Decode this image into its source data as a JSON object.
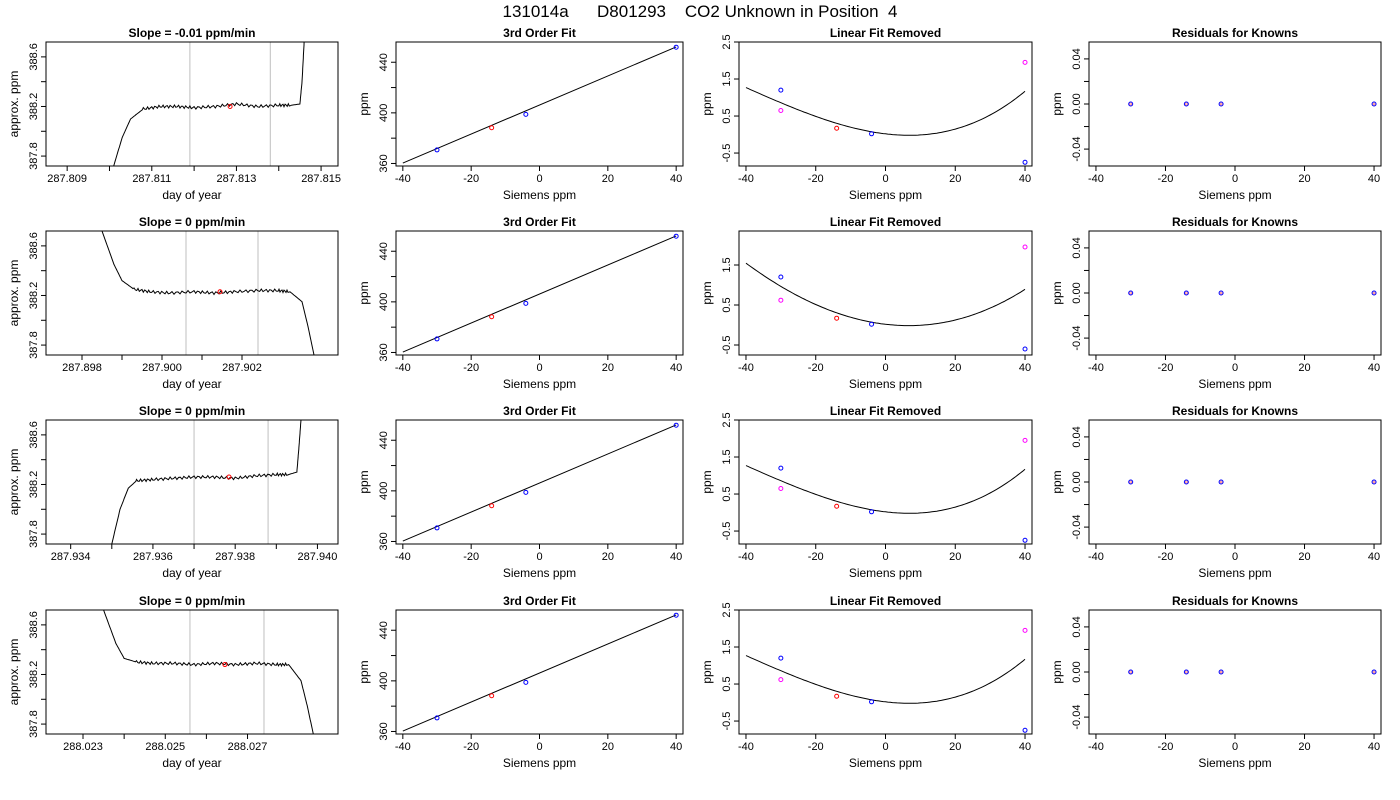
{
  "title": "131014a      D801293    CO2 Unknown in Position  4",
  "colors": {
    "axis": "#000000",
    "grid_vline": "#bfbfbf",
    "known": "#0000ff",
    "unknown": "#ff0000",
    "linear_resid": "#ff00ff",
    "line": "#000000"
  },
  "chart_data": [
    {
      "panel": "trace",
      "type": "line",
      "title": "Slope =  -0.01  ppm/min",
      "xlabel": "day of year",
      "ylabel": "approx. ppm",
      "xticks": [
        "287.809",
        "287.811",
        "287.813",
        "287.815"
      ],
      "yticks": [
        "387.8",
        "388.2",
        "388.6"
      ],
      "xlim": [
        287.8085,
        287.8154
      ],
      "ylim": [
        387.72,
        388.72
      ],
      "vlines": [
        287.8119,
        287.8138
      ],
      "x": [
        287.8101,
        287.8103,
        287.8105,
        287.8108,
        287.8112,
        287.8116,
        287.812,
        287.8125,
        287.813,
        287.8135,
        287.814,
        287.8143,
        287.8145,
        287.81455,
        287.8146
      ],
      "y": [
        387.72,
        387.95,
        388.1,
        388.18,
        388.2,
        388.2,
        388.19,
        388.2,
        388.22,
        388.2,
        388.21,
        388.21,
        388.22,
        388.4,
        388.72
      ],
      "marker": {
        "x": 287.81285,
        "y": 388.2
      }
    },
    {
      "panel": "fit",
      "type": "scatter",
      "title": "3rd Order Fit",
      "xlabel": "Siemens ppm",
      "ylabel": "ppm",
      "xticks": [
        "-40",
        "-20",
        "0",
        "20",
        "40"
      ],
      "yticks": [
        "360",
        "400",
        "440"
      ],
      "xlim": [
        -42,
        42
      ],
      "ylim": [
        358,
        456
      ],
      "knowns": {
        "x": [
          -30,
          -4,
          40
        ],
        "y": [
          370.7,
          398.8,
          451.9
        ]
      },
      "unknown": {
        "x": [
          -14
        ],
        "y": [
          388.2
        ]
      },
      "line": {
        "x": [
          -40,
          40
        ],
        "y": [
          360.3,
          452.1
        ]
      }
    },
    {
      "panel": "linear_removed",
      "type": "scatter",
      "title": "Linear Fit Removed",
      "xlabel": "Siemens ppm",
      "ylabel": "ppm",
      "xticks": [
        "-40",
        "-20",
        "0",
        "20",
        "40"
      ],
      "yticks": [
        "-0.5",
        "0.5",
        "1.5",
        "2.5"
      ],
      "xlim": [
        -42,
        42
      ],
      "ylim": [
        -0.85,
        2.5
      ],
      "knowns": {
        "x": [
          -30,
          -4,
          40
        ],
        "y": [
          1.2,
          0.02,
          -0.75
        ]
      },
      "unknown": {
        "x": [
          -14
        ],
        "y": [
          0.17
        ]
      },
      "linear": {
        "x": [
          -30,
          40
        ],
        "y": [
          0.65,
          1.95
        ]
      },
      "curve_coeffs": [
        0.0187,
        -0.011065,
        0.00075,
        6.15e-06
      ]
    },
    {
      "panel": "residuals",
      "type": "scatter",
      "title": "Residuals for Knowns",
      "xlabel": "Siemens ppm",
      "ylabel": "ppm",
      "xticks": [
        "-40",
        "-20",
        "0",
        "20",
        "40"
      ],
      "yticks": [
        "-0.04",
        "0.00",
        "0.04"
      ],
      "xlim": [
        -42,
        42
      ],
      "ylim": [
        -0.055,
        0.055
      ],
      "knowns": {
        "x": [
          -30,
          -14,
          -4,
          40
        ],
        "y": [
          0,
          0,
          0,
          0
        ]
      }
    },
    {
      "panel": "trace",
      "type": "line",
      "title": "Slope =  0  ppm/min",
      "xlabel": "day of year",
      "ylabel": "approx. ppm",
      "xticks": [
        "287.898",
        "287.900",
        "287.902"
      ],
      "yticks": [
        "387.8",
        "388.2",
        "388.6"
      ],
      "xlim": [
        287.8971,
        287.9044
      ],
      "ylim": [
        387.72,
        388.72
      ],
      "vlines": [
        287.9006,
        287.9024
      ],
      "x": [
        287.8985,
        287.8988,
        287.899,
        287.8993,
        287.8997,
        287.9002,
        287.9008,
        287.9013,
        287.9018,
        287.9024,
        287.9029,
        287.9032,
        287.9035,
        287.90365,
        287.9038
      ],
      "y": [
        388.72,
        388.45,
        388.32,
        388.25,
        388.23,
        388.22,
        388.23,
        388.22,
        388.23,
        388.24,
        388.24,
        388.23,
        388.15,
        387.95,
        387.72
      ],
      "marker": {
        "x": 287.90145,
        "y": 388.23
      }
    },
    {
      "panel": "fit",
      "type": "scatter",
      "title": "3rd Order Fit",
      "xlabel": "Siemens ppm",
      "ylabel": "ppm",
      "xticks": [
        "-40",
        "-20",
        "0",
        "20",
        "40"
      ],
      "yticks": [
        "360",
        "400",
        "440"
      ],
      "xlim": [
        -42,
        42
      ],
      "ylim": [
        358,
        456
      ],
      "knowns": {
        "x": [
          -30,
          -4,
          40
        ],
        "y": [
          370.7,
          398.8,
          451.9
        ]
      },
      "unknown": {
        "x": [
          -14
        ],
        "y": [
          388.2
        ]
      },
      "line": {
        "x": [
          -40,
          40
        ],
        "y": [
          360.3,
          452.1
        ]
      }
    },
    {
      "panel": "linear_removed",
      "type": "scatter",
      "title": "Linear Fit Removed",
      "xlabel": "Siemens ppm",
      "ylabel": "ppm",
      "xticks": [
        "-40",
        "-20",
        "0",
        "20",
        "40"
      ],
      "yticks": [
        "-0.5",
        "0.5",
        "1.5"
      ],
      "xlim": [
        -42,
        42
      ],
      "ylim": [
        -0.75,
        2.35
      ],
      "knowns": {
        "x": [
          -30,
          -4,
          40
        ],
        "y": [
          1.2,
          0.02,
          -0.6
        ]
      },
      "unknown": {
        "x": [
          -14
        ],
        "y": [
          0.17
        ]
      },
      "linear": {
        "x": [
          -30,
          40
        ],
        "y": [
          0.62,
          1.95
        ]
      },
      "curve_coeffs": [
        0.0187,
        -0.010185,
        0.00075,
        1.25e-06
      ]
    },
    {
      "panel": "residuals",
      "type": "scatter",
      "title": "Residuals for Knowns",
      "xlabel": "Siemens ppm",
      "ylabel": "ppm",
      "xticks": [
        "-40",
        "-20",
        "0",
        "20",
        "40"
      ],
      "yticks": [
        "-0.04",
        "0.00",
        "0.04"
      ],
      "xlim": [
        -42,
        42
      ],
      "ylim": [
        -0.055,
        0.055
      ],
      "knowns": {
        "x": [
          -30,
          -14,
          -4,
          40
        ],
        "y": [
          0,
          0,
          0,
          0
        ]
      }
    },
    {
      "panel": "trace",
      "type": "line",
      "title": "Slope =  0  ppm/min",
      "xlabel": "day of year",
      "ylabel": "approx. ppm",
      "xticks": [
        "287.934",
        "287.936",
        "287.938",
        "287.940"
      ],
      "yticks": [
        "387.8",
        "388.2",
        "388.6"
      ],
      "xlim": [
        287.9334,
        287.9405
      ],
      "ylim": [
        387.72,
        388.72
      ],
      "vlines": [
        287.937,
        287.9388
      ],
      "x": [
        287.935,
        287.9352,
        287.9354,
        287.9356,
        287.936,
        287.9365,
        287.937,
        287.9375,
        287.938,
        287.9385,
        287.939,
        287.9393,
        287.9395,
        287.93955,
        287.9396
      ],
      "y": [
        387.72,
        388.0,
        388.17,
        388.23,
        388.24,
        388.25,
        388.26,
        388.26,
        388.25,
        388.27,
        388.28,
        388.28,
        388.3,
        388.5,
        388.72
      ],
      "marker": {
        "x": 287.93785,
        "y": 388.26
      }
    },
    {
      "panel": "fit",
      "type": "scatter",
      "title": "3rd Order Fit",
      "xlabel": "Siemens ppm",
      "ylabel": "ppm",
      "xticks": [
        "-40",
        "-20",
        "0",
        "20",
        "40"
      ],
      "yticks": [
        "360",
        "400",
        "440"
      ],
      "xlim": [
        -42,
        42
      ],
      "ylim": [
        358,
        456
      ],
      "knowns": {
        "x": [
          -30,
          -4,
          40
        ],
        "y": [
          370.7,
          398.8,
          451.9
        ]
      },
      "unknown": {
        "x": [
          -14
        ],
        "y": [
          388.2
        ]
      },
      "line": {
        "x": [
          -40,
          40
        ],
        "y": [
          360.3,
          452.1
        ]
      }
    },
    {
      "panel": "linear_removed",
      "type": "scatter",
      "title": "Linear Fit Removed",
      "xlabel": "Siemens ppm",
      "ylabel": "ppm",
      "xticks": [
        "-40",
        "-20",
        "0",
        "20",
        "40"
      ],
      "yticks": [
        "-0.5",
        "0.5",
        "1.5",
        "2.5"
      ],
      "xlim": [
        -42,
        42
      ],
      "ylim": [
        -0.85,
        2.5
      ],
      "knowns": {
        "x": [
          -30,
          -4,
          40
        ],
        "y": [
          1.2,
          0.02,
          -0.75
        ]
      },
      "unknown": {
        "x": [
          -14
        ],
        "y": [
          0.17
        ]
      },
      "linear": {
        "x": [
          -30,
          40
        ],
        "y": [
          0.65,
          1.95
        ]
      },
      "curve_coeffs": [
        0.0187,
        -0.011065,
        0.00075,
        6.15e-06
      ]
    },
    {
      "panel": "residuals",
      "type": "scatter",
      "title": "Residuals for Knowns",
      "xlabel": "Siemens ppm",
      "ylabel": "ppm",
      "xticks": [
        "-40",
        "-20",
        "0",
        "20",
        "40"
      ],
      "yticks": [
        "-0.04",
        "0.00",
        "0.04"
      ],
      "xlim": [
        -42,
        42
      ],
      "ylim": [
        -0.055,
        0.055
      ],
      "knowns": {
        "x": [
          -30,
          -14,
          -4,
          40
        ],
        "y": [
          0,
          0,
          0,
          0
        ]
      }
    },
    {
      "panel": "trace",
      "type": "line",
      "title": "Slope =  0  ppm/min",
      "xlabel": "day of year",
      "ylabel": "approx. ppm",
      "xticks": [
        "288.023",
        "288.025",
        "288.027"
      ],
      "yticks": [
        "387.8",
        "388.2",
        "388.6"
      ],
      "xlim": [
        288.0221,
        288.0292
      ],
      "ylim": [
        387.72,
        388.72
      ],
      "vlines": [
        288.0256,
        288.0274
      ],
      "x": [
        288.0235,
        288.0238,
        288.024,
        288.0243,
        288.0247,
        288.0252,
        288.0257,
        288.0262,
        288.0267,
        288.0272,
        288.0277,
        288.028,
        288.0283,
        288.02845,
        288.0286
      ],
      "y": [
        388.72,
        388.45,
        388.33,
        388.3,
        388.29,
        388.29,
        388.28,
        388.29,
        388.28,
        388.29,
        388.28,
        388.28,
        388.15,
        387.95,
        387.72
      ],
      "marker": {
        "x": 288.02645,
        "y": 388.28
      }
    },
    {
      "panel": "fit",
      "type": "scatter",
      "title": "3rd Order Fit",
      "xlabel": "Siemens ppm",
      "ylabel": "ppm",
      "xticks": [
        "-40",
        "-20",
        "0",
        "20",
        "40"
      ],
      "yticks": [
        "360",
        "400",
        "440"
      ],
      "xlim": [
        -42,
        42
      ],
      "ylim": [
        358,
        456
      ],
      "knowns": {
        "x": [
          -30,
          -4,
          40
        ],
        "y": [
          370.7,
          398.8,
          451.9
        ]
      },
      "unknown": {
        "x": [
          -14
        ],
        "y": [
          388.2
        ]
      },
      "line": {
        "x": [
          -40,
          40
        ],
        "y": [
          360.3,
          452.1
        ]
      }
    },
    {
      "panel": "linear_removed",
      "type": "scatter",
      "title": "Linear Fit Removed",
      "xlabel": "Siemens ppm",
      "ylabel": "ppm",
      "xticks": [
        "-40",
        "-20",
        "0",
        "20",
        "40"
      ],
      "yticks": [
        "-0.5",
        "0.5",
        "1.5",
        "2.5"
      ],
      "xlim": [
        -42,
        42
      ],
      "ylim": [
        -0.85,
        2.5
      ],
      "knowns": {
        "x": [
          -30,
          -4,
          40
        ],
        "y": [
          1.2,
          0.02,
          -0.75
        ]
      },
      "unknown": {
        "x": [
          -14
        ],
        "y": [
          0.17
        ]
      },
      "linear": {
        "x": [
          -30,
          40
        ],
        "y": [
          0.62,
          1.95
        ]
      },
      "curve_coeffs": [
        0.0187,
        -0.011065,
        0.00075,
        6.15e-06
      ]
    },
    {
      "panel": "residuals",
      "type": "scatter",
      "title": "Residuals for Knowns",
      "xlabel": "Siemens ppm",
      "ylabel": "ppm",
      "xticks": [
        "-40",
        "-20",
        "0",
        "20",
        "40"
      ],
      "yticks": [
        "-0.04",
        "0.00",
        "0.04"
      ],
      "xlim": [
        -42,
        42
      ],
      "ylim": [
        -0.055,
        0.055
      ],
      "knowns": {
        "x": [
          -30,
          -14,
          -4,
          40
        ],
        "y": [
          0,
          0,
          0,
          0
        ]
      }
    }
  ]
}
